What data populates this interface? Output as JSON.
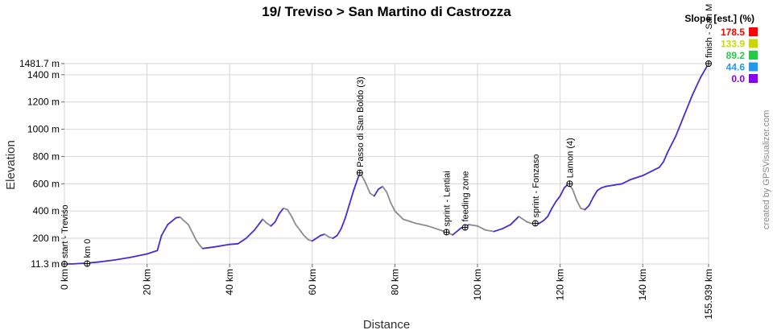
{
  "chart_data": {
    "type": "line",
    "title": "19/ Treviso > San Martino di Castrozza",
    "xlabel": "Distance",
    "ylabel": "Elevation",
    "xlim": [
      0,
      155.939
    ],
    "ylim": [
      11.3,
      1481.7
    ],
    "x_ticks": [
      {
        "value": 0,
        "label": "0 km"
      },
      {
        "value": 20,
        "label": "20 km"
      },
      {
        "value": 40,
        "label": "40 km"
      },
      {
        "value": 60,
        "label": "60 km"
      },
      {
        "value": 80,
        "label": "80 km"
      },
      {
        "value": 100,
        "label": "100 km"
      },
      {
        "value": 120,
        "label": "120 km"
      },
      {
        "value": 140,
        "label": "140 km"
      },
      {
        "value": 155.939,
        "label": "155.939 km"
      }
    ],
    "y_ticks": [
      {
        "value": 11.3,
        "label": "11.3 m"
      },
      {
        "value": 200,
        "label": "200 m"
      },
      {
        "value": 400,
        "label": "400 m"
      },
      {
        "value": 600,
        "label": "600 m"
      },
      {
        "value": 800,
        "label": "800 m"
      },
      {
        "value": 1000,
        "label": "1000 m"
      },
      {
        "value": 1200,
        "label": "1200 m"
      },
      {
        "value": 1400,
        "label": "1400 m"
      },
      {
        "value": 1481.7,
        "label": "1481.7 m"
      }
    ],
    "grid": true,
    "series": [
      {
        "x": [
          0,
          2,
          5,
          8,
          12,
          16,
          20,
          22.5,
          23.5,
          25,
          27,
          28,
          30,
          32,
          33,
          33.5,
          36,
          40,
          42,
          44,
          46,
          48,
          49,
          50,
          51,
          52,
          53,
          54,
          55,
          56,
          57,
          58,
          59,
          60,
          61,
          62,
          63,
          64,
          65,
          66,
          67,
          68,
          69,
          70,
          71.5,
          72,
          73,
          74,
          75,
          76,
          77,
          78,
          79,
          80,
          82,
          85,
          88,
          90,
          92,
          94,
          96,
          98,
          100,
          102,
          104,
          106,
          108,
          110,
          112,
          114,
          115,
          116,
          117,
          118,
          119,
          120,
          121,
          122,
          123,
          124,
          125,
          126,
          127,
          128,
          129,
          130,
          131,
          133,
          135,
          137,
          138,
          140,
          142,
          144,
          145,
          146,
          148,
          150,
          152,
          154,
          155.939
        ],
        "y": [
          11.3,
          12,
          17,
          25,
          40,
          60,
          85,
          110,
          220,
          300,
          350,
          355,
          300,
          180,
          140,
          125,
          135,
          155,
          160,
          200,
          260,
          340,
          310,
          290,
          320,
          380,
          420,
          410,
          360,
          300,
          260,
          220,
          190,
          180,
          200,
          220,
          230,
          210,
          200,
          220,
          270,
          350,
          450,
          550,
          680,
          660,
          600,
          530,
          510,
          560,
          580,
          540,
          460,
          400,
          340,
          310,
          290,
          270,
          250,
          225,
          275,
          300,
          290,
          260,
          250,
          270,
          300,
          360,
          320,
          300,
          310,
          330,
          360,
          420,
          470,
          510,
          570,
          600,
          560,
          480,
          420,
          410,
          440,
          500,
          550,
          570,
          580,
          590,
          600,
          630,
          640,
          660,
          690,
          720,
          760,
          830,
          950,
          1100,
          1250,
          1380,
          1481.7
        ]
      }
    ],
    "waypoints": [
      {
        "x": 0,
        "y": 11.3,
        "label": "start - Treviso"
      },
      {
        "x": 5.5,
        "y": 14,
        "label": "km 0"
      },
      {
        "x": 71.5,
        "y": 680,
        "label": "Passo di San Boldo (3)"
      },
      {
        "x": 92.5,
        "y": 245,
        "label": "sprint - Lentiai"
      },
      {
        "x": 97,
        "y": 280,
        "label": "feeding zone"
      },
      {
        "x": 114,
        "y": 310,
        "label": "sprint - Fonzaso"
      },
      {
        "x": 122.3,
        "y": 600,
        "label": "Lamon (4)"
      },
      {
        "x": 155.939,
        "y": 1481.7,
        "label": "finish - San M"
      }
    ],
    "legend": {
      "title": "Slope [est.] (%)",
      "position": "top-right",
      "entries": [
        {
          "label": "178.5",
          "color": "#ff0000"
        },
        {
          "label": "133.9",
          "color": "#c8d800"
        },
        {
          "label": "89.2",
          "color": "#22cc44"
        },
        {
          "label": "44.6",
          "color": "#2299ee"
        },
        {
          "label": "0.0",
          "color": "#8800ee"
        }
      ]
    },
    "line_colors": {
      "ascent": "#4a2ad8",
      "descent": "#8c8c8c"
    }
  },
  "credit": "created by GPSVisualizer.com"
}
